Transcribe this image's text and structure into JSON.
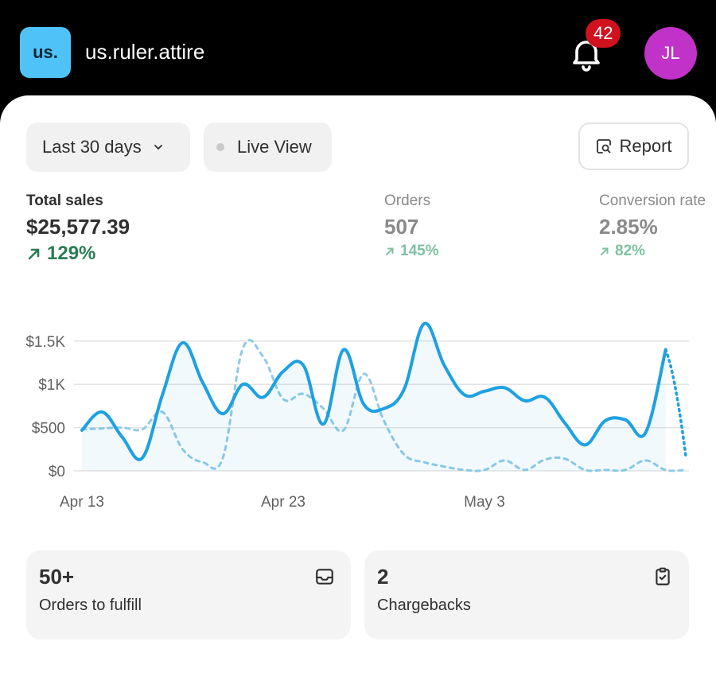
{
  "header": {
    "logo_text": "us.",
    "store_name": "us.ruler.attire",
    "notification_count": "42",
    "avatar_initials": "JL",
    "icons": [
      "bell-icon"
    ],
    "colors": {
      "logo": "#4fc3f7",
      "badge": "#d0121f",
      "avatar": "#c032c8"
    }
  },
  "toolbar": {
    "date_range": "Last 30 days",
    "live_view": "Live View",
    "report": "Report"
  },
  "metrics": {
    "total_sales": {
      "label": "Total sales",
      "value": "$25,577.39",
      "delta": "129%"
    },
    "orders": {
      "label": "Orders",
      "value": "507",
      "delta": "145%"
    },
    "conversion": {
      "label": "Conversion rate",
      "value": "2.85%",
      "delta": "82%"
    }
  },
  "chart_data": {
    "type": "line",
    "x_ticks": [
      "Apr 13",
      "Apr 23",
      "May 3"
    ],
    "y_ticks": [
      "$0",
      "$500",
      "$1K",
      "$1.5K"
    ],
    "ylim": [
      0,
      1700
    ],
    "grid": true,
    "colors": {
      "current": "#1da1e2",
      "previous": "#8fcbe6"
    },
    "series": [
      {
        "style": "solid",
        "values": [
          470,
          680,
          390,
          150,
          880,
          1480,
          1020,
          660,
          1000,
          850,
          1150,
          1220,
          540,
          1400,
          770,
          720,
          940,
          1700,
          1220,
          880,
          920,
          960,
          810,
          850,
          550,
          300,
          580,
          590,
          440,
          1400,
          170
        ]
      },
      {
        "style": "dashed",
        "values": [
          480,
          490,
          500,
          480,
          680,
          250,
          100,
          150,
          1420,
          1320,
          830,
          890,
          720,
          470,
          1120,
          580,
          190,
          100,
          50,
          10,
          10,
          120,
          10,
          130,
          140,
          10,
          10,
          10,
          120,
          10,
          10
        ]
      }
    ]
  },
  "tiles": [
    {
      "count": "50+",
      "label": "Orders to fulfill",
      "icon": "inbox-icon"
    },
    {
      "count": "2",
      "label": "Chargebacks",
      "icon": "clipboard-check-icon"
    }
  ]
}
